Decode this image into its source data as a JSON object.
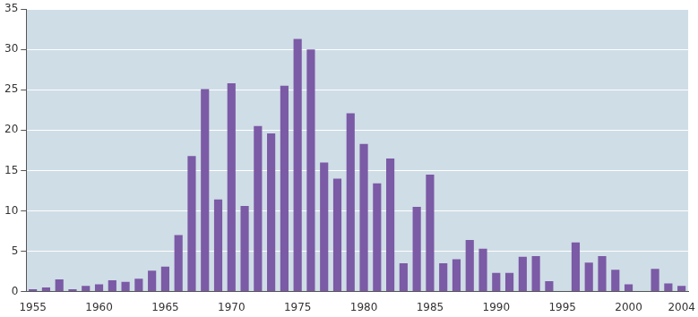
{
  "chart_data": {
    "type": "bar",
    "categories": [
      "1955",
      null,
      null,
      null,
      null,
      "1960",
      null,
      null,
      null,
      null,
      "1965",
      null,
      null,
      null,
      null,
      "1970",
      null,
      null,
      null,
      null,
      "1975",
      null,
      null,
      null,
      null,
      "1980",
      null,
      null,
      null,
      null,
      "1985",
      null,
      null,
      null,
      null,
      "1990",
      null,
      null,
      null,
      null,
      "1995",
      null,
      null,
      null,
      null,
      "2000",
      null,
      null,
      null,
      "2004"
    ],
    "values": [
      0.3,
      0.5,
      1.5,
      0.3,
      0.7,
      0.9,
      1.4,
      1.2,
      1.6,
      2.6,
      3.1,
      7.0,
      16.8,
      25.1,
      11.4,
      25.8,
      10.6,
      20.5,
      19.6,
      25.5,
      31.3,
      30.0,
      16.0,
      14.0,
      22.1,
      18.3,
      13.4,
      16.5,
      3.5,
      10.5,
      14.5,
      3.5,
      4.0,
      6.4,
      5.3,
      2.3,
      2.3,
      4.3,
      4.4,
      1.3,
      0,
      6.1,
      3.6,
      4.4,
      2.7,
      0.9,
      0,
      2.8,
      1.0,
      0.7
    ],
    "color": "#7b5aa6",
    "ylim": [
      0,
      35
    ],
    "yticks": [
      0,
      5,
      10,
      15,
      20,
      25,
      30,
      35
    ],
    "grid": true
  }
}
